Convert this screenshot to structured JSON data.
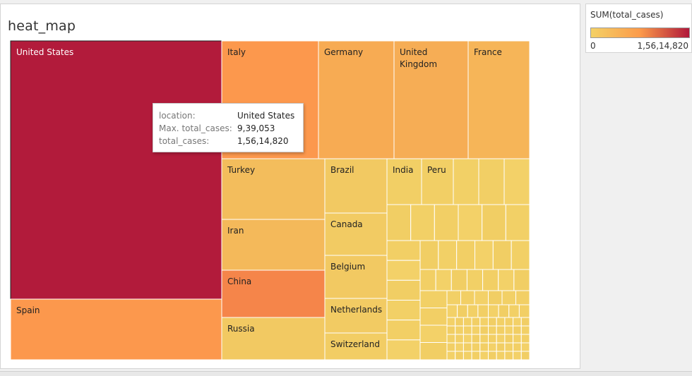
{
  "title": "heat_map",
  "colors": {
    "low": "#f4d166",
    "mid": "#fb9a4a",
    "high": "#b0183a",
    "china": "#f5854a"
  },
  "chart_data": {
    "type": "treemap",
    "title": "heat_map",
    "measure": "SUM(total_cases)",
    "color_range": [
      0,
      15614820
    ],
    "items": [
      {
        "label": "United States",
        "value": 15614820,
        "color": "#b21b3b",
        "light": true
      },
      {
        "label": "Spain",
        "color": "#fc984d"
      },
      {
        "label": "Italy",
        "color": "#fc984d"
      },
      {
        "label": "Germany",
        "color": "#f7ab53"
      },
      {
        "label": "United Kingdom",
        "label_lines": [
          "United",
          "Kingdom"
        ],
        "color": "#f6ad55"
      },
      {
        "label": "France",
        "color": "#f6b558"
      },
      {
        "label": "Turkey",
        "color": "#f3bd5c"
      },
      {
        "label": "Iran",
        "color": "#f4b95a"
      },
      {
        "label": "China",
        "color": "#f5854a"
      },
      {
        "label": "Russia",
        "color": "#f2c962"
      },
      {
        "label": "Brazil",
        "color": "#f2c962"
      },
      {
        "label": "Canada",
        "color": "#f2cb63"
      },
      {
        "label": "Belgium",
        "color": "#f2c962"
      },
      {
        "label": "Netherlands",
        "color": "#f2cb63"
      },
      {
        "label": "Switzerland",
        "color": "#f2cd64"
      },
      {
        "label": "India",
        "color": "#f2cf65"
      },
      {
        "label": "Peru",
        "color": "#f2cf65"
      }
    ]
  },
  "tooltip": {
    "rows": [
      {
        "key": "location:",
        "value": "United States"
      },
      {
        "key": "Max. total_cases:",
        "value": "9,39,053"
      },
      {
        "key": "total_cases:",
        "value": "1,56,14,820"
      }
    ]
  },
  "legend": {
    "title": "SUM(total_cases)",
    "min_label": "0",
    "max_label": "1,56,14,820"
  }
}
